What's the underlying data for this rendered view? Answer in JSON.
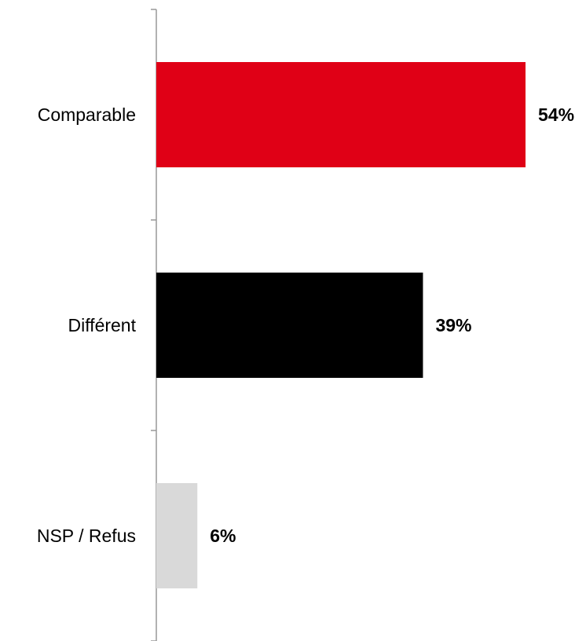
{
  "chart_data": {
    "type": "bar",
    "orientation": "horizontal",
    "categories": [
      "Comparable",
      "Différent",
      "NSP / Refus"
    ],
    "values": [
      54,
      39,
      6
    ],
    "value_labels": [
      "54%",
      "39%",
      "6%"
    ],
    "colors": [
      "#e00016",
      "#000000",
      "#d9d9d9"
    ],
    "axis_color": "#999999",
    "xlim": [
      0,
      60
    ],
    "title": "",
    "xlabel": "",
    "ylabel": "",
    "grid": false,
    "legend": "none"
  }
}
